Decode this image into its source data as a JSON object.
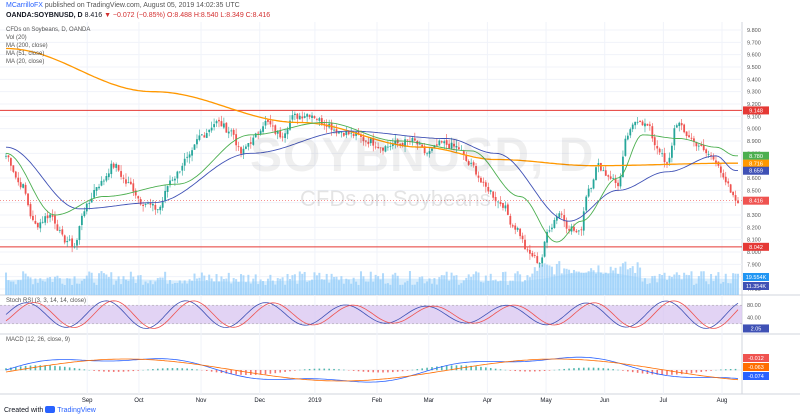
{
  "header": {
    "user": "MCarrilloFX",
    "published": "published on TradingView.com, August 05, 2019 14:02:35 UTC",
    "symbol": "OANDA:SOYBNUSD, D",
    "last": "8.416",
    "change": "▼ −0.072 (−0.85%)",
    "ohlc": "O:8.488 H:8.540 L:8.349 C:8.416"
  },
  "legend": {
    "title": "CFDs on Soybeans, D, OANDA",
    "vol": "Vol (20)",
    "ma200": "MA (200, close)",
    "ma51": "MA (51, close)",
    "ma20": "MA (20, close)"
  },
  "watermark": {
    "symbol": "SOYBNUSD, D",
    "name": "CFDs on Soybeans"
  },
  "indicators": {
    "stoch": "Stoch RSI (3, 3, 14, 14, close)",
    "macd": "MACD (12, 26, close, 9)"
  },
  "footer": {
    "prefix": "Created with",
    "brand": "TradingView"
  },
  "colors": {
    "up": "#26a69a",
    "down": "#ef5350",
    "ma200": "#ff9800",
    "ma51": "#3f51b5",
    "ma20": "#4caf50",
    "resistance": "#e53935",
    "volume": "#90caf9",
    "stoch_k": "#3f51b5",
    "stoch_d": "#ef5350",
    "stoch_band": "#d8c4f0",
    "macd_line": "#2962ff",
    "macd_signal": "#ff6d00"
  },
  "chart_data": {
    "type": "candlestick",
    "symbol": "OANDA:SOYBNUSD",
    "timeframe": "D",
    "ylim": [
      7.7,
      9.8
    ],
    "y_ticks": [
      "9.800",
      "9.700",
      "9.600",
      "9.500",
      "9.400",
      "9.300",
      "9.200",
      "9.100",
      "9.000",
      "8.900",
      "8.800",
      "8.700",
      "8.600",
      "8.500",
      "8.400",
      "8.300",
      "8.200",
      "8.100",
      "8.000",
      "7.900",
      "7.800",
      "7.700"
    ],
    "x_ticks": [
      {
        "label": "Sep",
        "t": 0.08
      },
      {
        "label": "Oct",
        "t": 0.155
      },
      {
        "label": "Nov",
        "t": 0.245
      },
      {
        "label": "Dec",
        "t": 0.33
      },
      {
        "label": "2019",
        "t": 0.41
      },
      {
        "label": "Feb",
        "t": 0.5
      },
      {
        "label": "Mar",
        "t": 0.575
      },
      {
        "label": "Apr",
        "t": 0.66
      },
      {
        "label": "May",
        "t": 0.745
      },
      {
        "label": "Jun",
        "t": 0.83
      },
      {
        "label": "Jul",
        "t": 0.915
      },
      {
        "label": "Aug",
        "t": 1.0
      }
    ],
    "resistance_levels": [
      9.148,
      8.042
    ],
    "price_labels": [
      {
        "label": "9.148",
        "value": 9.148,
        "color": "#e53935"
      },
      {
        "label": "8.780",
        "value": 8.78,
        "color": "#4caf50"
      },
      {
        "label": "8.716",
        "value": 8.716,
        "color": "#ff9800"
      },
      {
        "label": "8.659",
        "value": 8.659,
        "color": "#3f51b5"
      },
      {
        "label": "8.416",
        "value": 8.416,
        "color": "#ef5350"
      },
      {
        "label": "8.042",
        "value": 8.042,
        "color": "#e53935"
      }
    ],
    "close_anchors": [
      [
        0,
        8.78
      ],
      [
        6,
        8.55
      ],
      [
        12,
        8.22
      ],
      [
        18,
        8.3
      ],
      [
        24,
        8.1
      ],
      [
        28,
        8.05
      ],
      [
        32,
        8.35
      ],
      [
        38,
        8.55
      ],
      [
        44,
        8.7
      ],
      [
        50,
        8.55
      ],
      [
        56,
        8.4
      ],
      [
        62,
        8.35
      ],
      [
        68,
        8.6
      ],
      [
        74,
        8.75
      ],
      [
        80,
        8.95
      ],
      [
        86,
        9.05
      ],
      [
        92,
        8.98
      ],
      [
        96,
        8.8
      ],
      [
        100,
        8.9
      ],
      [
        106,
        9.05
      ],
      [
        112,
        8.95
      ],
      [
        118,
        9.1
      ],
      [
        124,
        9.12
      ],
      [
        130,
        9.05
      ],
      [
        136,
        8.98
      ],
      [
        142,
        8.95
      ],
      [
        148,
        8.9
      ],
      [
        154,
        8.85
      ],
      [
        160,
        8.88
      ],
      [
        166,
        8.9
      ],
      [
        172,
        8.8
      ],
      [
        178,
        8.88
      ],
      [
        184,
        8.85
      ],
      [
        190,
        8.7
      ],
      [
        196,
        8.52
      ],
      [
        202,
        8.4
      ],
      [
        208,
        8.2
      ],
      [
        214,
        7.98
      ],
      [
        218,
        7.92
      ],
      [
        222,
        8.2
      ],
      [
        226,
        8.32
      ],
      [
        230,
        8.2
      ],
      [
        234,
        8.15
      ],
      [
        238,
        8.52
      ],
      [
        242,
        8.7
      ],
      [
        246,
        8.62
      ],
      [
        250,
        8.55
      ],
      [
        254,
        8.95
      ],
      [
        258,
        9.08
      ],
      [
        262,
        9.02
      ],
      [
        266,
        8.85
      ],
      [
        270,
        8.7
      ],
      [
        274,
        9.05
      ],
      [
        278,
        8.95
      ],
      [
        282,
        8.88
      ],
      [
        286,
        8.8
      ],
      [
        290,
        8.75
      ],
      [
        294,
        8.55
      ],
      [
        298,
        8.42
      ]
    ],
    "ma200_anchors": [
      [
        0,
        9.65
      ],
      [
        60,
        9.3
      ],
      [
        120,
        9.05
      ],
      [
        170,
        8.85
      ],
      [
        200,
        8.75
      ],
      [
        240,
        8.7
      ],
      [
        298,
        8.72
      ]
    ],
    "ma51_anchors": [
      [
        0,
        8.85
      ],
      [
        30,
        8.35
      ],
      [
        60,
        8.4
      ],
      [
        100,
        8.8
      ],
      [
        140,
        8.98
      ],
      [
        180,
        8.92
      ],
      [
        200,
        8.8
      ],
      [
        230,
        8.25
      ],
      [
        250,
        8.5
      ],
      [
        270,
        8.65
      ],
      [
        290,
        8.78
      ],
      [
        298,
        8.66
      ]
    ],
    "ma20_anchors": [
      [
        0,
        8.8
      ],
      [
        20,
        8.3
      ],
      [
        40,
        8.45
      ],
      [
        70,
        8.55
      ],
      [
        100,
        8.95
      ],
      [
        130,
        9.05
      ],
      [
        160,
        8.9
      ],
      [
        190,
        8.82
      ],
      [
        210,
        8.45
      ],
      [
        225,
        8.08
      ],
      [
        235,
        8.25
      ],
      [
        250,
        8.6
      ],
      [
        260,
        8.95
      ],
      [
        275,
        8.92
      ],
      [
        290,
        8.85
      ],
      [
        298,
        8.78
      ]
    ],
    "volume_labels": [
      {
        "label": "19.554K",
        "color": "#2196f3"
      },
      {
        "label": "11.354K",
        "color": "#3f51b5"
      }
    ],
    "stoch": {
      "ylim": [
        0,
        100
      ],
      "ticks": [
        "80.00",
        "40.00"
      ],
      "band": [
        20,
        80
      ],
      "k_last": "2.05"
    },
    "macd": {
      "labels": [
        {
          "label": "-0.012",
          "color": "#ef5350"
        },
        {
          "label": "-0.063",
          "color": "#ff6d00"
        },
        {
          "label": "-0.074",
          "color": "#2962ff"
        }
      ]
    }
  }
}
